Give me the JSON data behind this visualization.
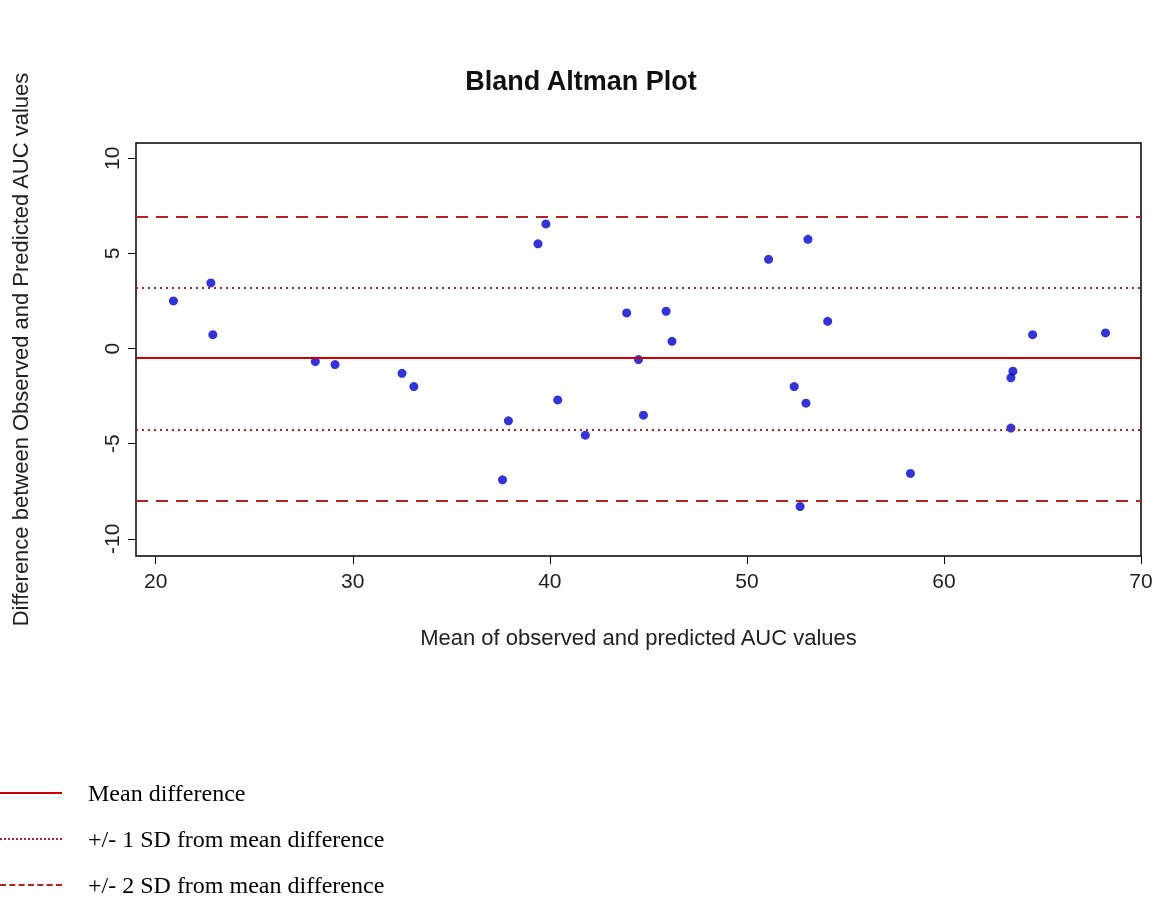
{
  "chart_data": {
    "type": "scatter",
    "title": "Bland Altman Plot",
    "xlabel": "Mean of observed and predicted AUC values",
    "ylabel": "Difference between Observed and Predicted AUC values",
    "x": [
      20.9,
      22.8,
      22.9,
      28.1,
      29.1,
      32.5,
      33.1,
      37.6,
      37.9,
      39.4,
      39.8,
      40.4,
      41.8,
      43.9,
      44.5,
      44.75,
      45.9,
      46.2,
      51.1,
      53.1,
      52.4,
      53.0,
      52.7,
      54.1,
      58.3,
      63.5,
      63.4,
      63.4,
      64.5,
      68.2
    ],
    "series": [
      {
        "color": "#0000cc",
        "values": [
          2.5,
          3.45,
          0.73,
          -0.68,
          -0.84,
          -1.3,
          -2.0,
          -6.9,
          -3.8,
          5.5,
          6.55,
          -2.7,
          -4.55,
          1.87,
          -0.58,
          -3.5,
          1.96,
          0.38,
          4.69,
          5.74,
          -2.0,
          -2.87,
          -8.3,
          1.43,
          -6.56,
          -1.19,
          -1.54,
          -4.18,
          0.73,
          0.82
        ]
      }
    ],
    "xlim": [
      19,
      70
    ],
    "xticks": [
      20,
      30,
      40,
      50,
      60,
      70
    ],
    "ylim": [
      -10.9,
      10.8
    ],
    "yticks": [
      -10,
      -5,
      0,
      5,
      10
    ],
    "marker": "circle",
    "grid": false,
    "legend": "bottom left",
    "ref_lines": [
      {
        "axis": "y",
        "value": -0.5,
        "label": "Mean difference",
        "color": "#cc0000",
        "line_style": "solid"
      },
      {
        "axis": "y",
        "value": 3.2,
        "label": "+/- 1 SD from mean difference",
        "color": "#b22222",
        "line_style": "dotted"
      },
      {
        "axis": "y",
        "value": -4.25,
        "label": null,
        "color": "#b22222",
        "line_style": "dotted"
      },
      {
        "axis": "y",
        "value": 6.9,
        "label": "+/- 2 SD from mean difference",
        "color": "#b22222",
        "line_style": "dashed"
      },
      {
        "axis": "y",
        "value": -8.0,
        "label": null,
        "color": "#b22222",
        "line_style": "dashed"
      }
    ]
  }
}
